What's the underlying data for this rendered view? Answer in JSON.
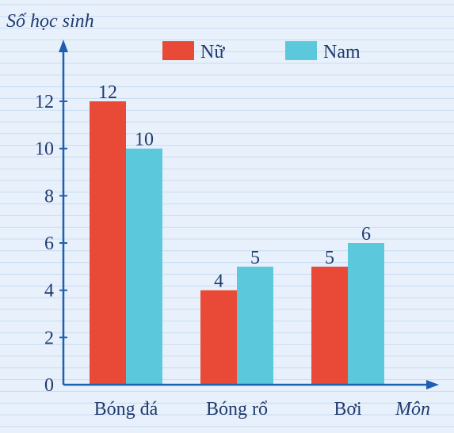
{
  "chart_data": {
    "type": "bar",
    "title": "",
    "ylabel": "Số học sinh",
    "xlabel": "Môn",
    "categories": [
      "Bóng đá",
      "Bóng rổ",
      "Bơi"
    ],
    "series": [
      {
        "name": "Nữ",
        "values": [
          12,
          4,
          5
        ],
        "color": "#e84a37"
      },
      {
        "name": "Nam",
        "values": [
          10,
          5,
          6
        ],
        "color": "#5bc8dc"
      }
    ],
    "ylim": [
      0,
      12
    ],
    "yticks": [
      0,
      2,
      4,
      6,
      8,
      10,
      12
    ],
    "legend": "top",
    "grid": "horizontal ruled lines",
    "colors": {
      "axis": "#1f5fb0",
      "text": "#1f3b70",
      "background": "#e8f1fb",
      "grid": "#c7dbf2"
    }
  }
}
